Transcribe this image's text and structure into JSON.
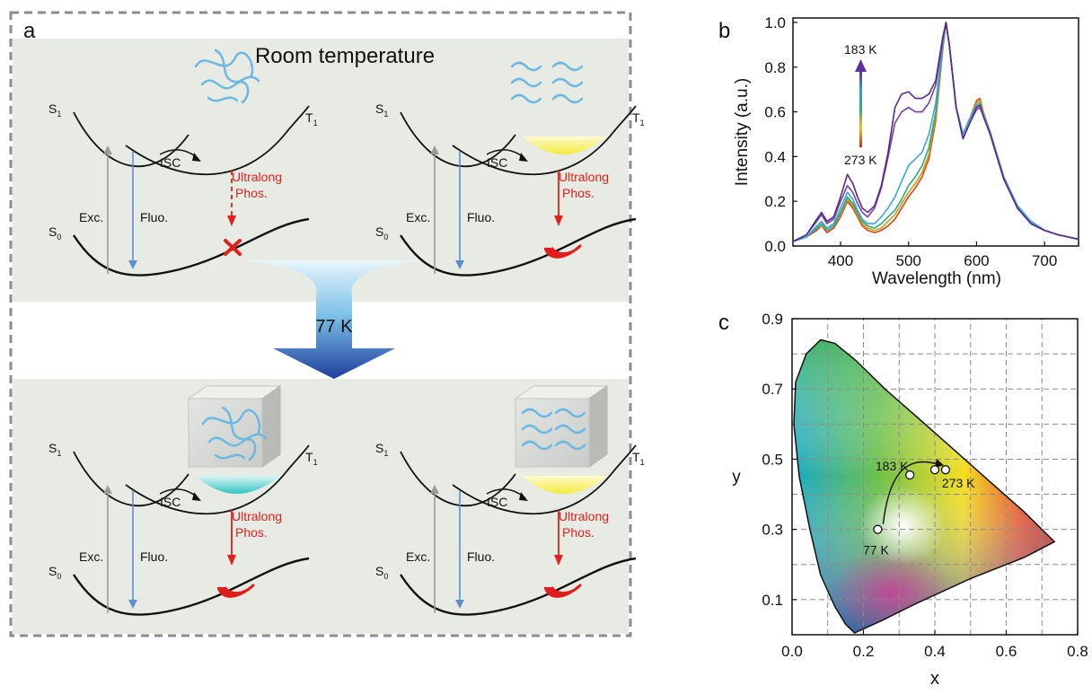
{
  "panel_a": {
    "label": "a",
    "heading": "Room temperature",
    "arrow_label": "77 K",
    "diagrams": [
      {
        "s1": "S",
        "s1_sub": "1",
        "t1": "T",
        "t1_sub": "1",
        "s0": "S",
        "s0_sub": "0",
        "exc": "Exc.",
        "fluo": "Fluo.",
        "isc": "ISC",
        "phos1": "Ultralong",
        "phos2": "Phos.",
        "well_fill": "none",
        "emission": "none",
        "env": "tangle"
      },
      {
        "s1": "S",
        "s1_sub": "1",
        "t1": "T",
        "t1_sub": "1",
        "s0": "S",
        "s0_sub": "0",
        "exc": "Exc.",
        "fluo": "Fluo.",
        "isc": "ISC",
        "phos1": "Ultralong",
        "phos2": "Phos.",
        "well_fill": "yellow",
        "emission": "glow",
        "env": "waves"
      },
      {
        "s1": "S",
        "s1_sub": "1",
        "t1": "T",
        "t1_sub": "1",
        "s0": "S",
        "s0_sub": "0",
        "exc": "Exc.",
        "fluo": "Fluo.",
        "isc": "ISC",
        "phos1": "Ultralong",
        "phos2": "Phos.",
        "well_fill": "cyan",
        "emission": "glow",
        "env": "tangle-cube"
      },
      {
        "s1": "S",
        "s1_sub": "1",
        "t1": "T",
        "t1_sub": "1",
        "s0": "S",
        "s0_sub": "0",
        "exc": "Exc.",
        "fluo": "Fluo.",
        "isc": "ISC",
        "phos1": "Ultralong",
        "phos2": "Phos.",
        "well_fill": "yellow",
        "emission": "glow",
        "env": "waves-cube"
      }
    ],
    "colors": {
      "panel_bg": "#e8ebe4",
      "exc": "#9a9a9a",
      "fluo": "#5b8fd0",
      "phos": "#e0201c",
      "isc": "#111111"
    }
  },
  "panel_b": {
    "label": "b",
    "ylabel": "Intensity (a.u.)",
    "xlabel": "Wavelength (nm)",
    "xticks": [
      "400",
      "500",
      "600",
      "700"
    ],
    "yticks": [
      "0.0",
      "0.2",
      "0.4",
      "0.6",
      "0.8",
      "1.0"
    ],
    "legend_top": "183 K",
    "legend_bottom": "273 K"
  },
  "panel_c": {
    "label": "c",
    "xlabel": "x",
    "ylabel": "y",
    "xticks": [
      "0.0",
      "0.2",
      "0.4",
      "0.6",
      "0.8"
    ],
    "yticks": [
      "0.1",
      "0.3",
      "0.5",
      "0.7",
      "0.9"
    ],
    "points": [
      {
        "x": 0.24,
        "y": 0.3,
        "label": "77 K"
      },
      {
        "x": 0.33,
        "y": 0.455,
        "label": "183 K"
      },
      {
        "x": 0.4,
        "y": 0.47,
        "label": ""
      },
      {
        "x": 0.43,
        "y": 0.47,
        "label": "273 K"
      }
    ]
  },
  "chart_data": [
    {
      "type": "line",
      "xlabel": "Wavelength (nm)",
      "ylabel": "Intensity (a.u.)",
      "xlim": [
        330,
        750
      ],
      "ylim": [
        0,
        1.02
      ],
      "x": [
        330,
        350,
        365,
        372,
        380,
        390,
        400,
        410,
        418,
        425,
        432,
        440,
        450,
        460,
        470,
        480,
        490,
        500,
        510,
        520,
        530,
        540,
        550,
        555,
        560,
        570,
        580,
        590,
        600,
        605,
        610,
        620,
        630,
        640,
        660,
        680,
        700,
        720,
        750
      ],
      "series": [
        {
          "name": "183 K",
          "color": "#5b2a86",
          "values": [
            0.02,
            0.05,
            0.12,
            0.15,
            0.11,
            0.13,
            0.22,
            0.32,
            0.28,
            0.22,
            0.17,
            0.15,
            0.18,
            0.27,
            0.42,
            0.62,
            0.68,
            0.69,
            0.66,
            0.66,
            0.68,
            0.74,
            0.93,
            1.0,
            0.9,
            0.62,
            0.48,
            0.55,
            0.62,
            0.63,
            0.58,
            0.5,
            0.4,
            0.3,
            0.17,
            0.1,
            0.07,
            0.05,
            0.03
          ]
        },
        {
          "color": "#7a3fa6",
          "values": [
            0.02,
            0.05,
            0.11,
            0.14,
            0.1,
            0.12,
            0.2,
            0.27,
            0.24,
            0.19,
            0.15,
            0.13,
            0.17,
            0.26,
            0.4,
            0.55,
            0.6,
            0.62,
            0.6,
            0.6,
            0.64,
            0.72,
            0.92,
            1.0,
            0.9,
            0.62,
            0.48,
            0.55,
            0.61,
            0.62,
            0.58,
            0.5,
            0.4,
            0.3,
            0.17,
            0.1,
            0.07,
            0.05,
            0.03
          ]
        },
        {
          "color": "#3aa6d6",
          "values": [
            0.02,
            0.04,
            0.09,
            0.11,
            0.08,
            0.1,
            0.17,
            0.24,
            0.21,
            0.16,
            0.12,
            0.1,
            0.1,
            0.13,
            0.17,
            0.22,
            0.29,
            0.36,
            0.39,
            0.42,
            0.5,
            0.64,
            0.9,
            1.0,
            0.9,
            0.62,
            0.5,
            0.57,
            0.63,
            0.64,
            0.59,
            0.51,
            0.41,
            0.31,
            0.18,
            0.11,
            0.07,
            0.05,
            0.03
          ]
        },
        {
          "color": "#2aa88e",
          "values": [
            0.02,
            0.04,
            0.08,
            0.1,
            0.07,
            0.09,
            0.15,
            0.22,
            0.19,
            0.15,
            0.11,
            0.09,
            0.08,
            0.1,
            0.13,
            0.16,
            0.21,
            0.27,
            0.31,
            0.36,
            0.44,
            0.6,
            0.89,
            1.0,
            0.9,
            0.62,
            0.5,
            0.57,
            0.63,
            0.64,
            0.59,
            0.51,
            0.41,
            0.31,
            0.18,
            0.11,
            0.07,
            0.05,
            0.03
          ]
        },
        {
          "color": "#c9a300",
          "values": [
            0.02,
            0.04,
            0.08,
            0.09,
            0.07,
            0.09,
            0.14,
            0.21,
            0.18,
            0.14,
            0.1,
            0.08,
            0.07,
            0.08,
            0.11,
            0.14,
            0.19,
            0.24,
            0.28,
            0.33,
            0.41,
            0.58,
            0.88,
            1.0,
            0.9,
            0.62,
            0.5,
            0.57,
            0.64,
            0.65,
            0.6,
            0.51,
            0.41,
            0.31,
            0.18,
            0.11,
            0.07,
            0.05,
            0.03
          ]
        },
        {
          "name": "273 K",
          "color": "#e0401c",
          "values": [
            0.02,
            0.04,
            0.07,
            0.09,
            0.06,
            0.08,
            0.13,
            0.2,
            0.17,
            0.13,
            0.09,
            0.07,
            0.06,
            0.07,
            0.09,
            0.12,
            0.17,
            0.22,
            0.26,
            0.31,
            0.39,
            0.56,
            0.87,
            1.0,
            0.9,
            0.62,
            0.5,
            0.57,
            0.65,
            0.66,
            0.6,
            0.51,
            0.41,
            0.31,
            0.18,
            0.11,
            0.07,
            0.05,
            0.03
          ]
        }
      ]
    },
    {
      "type": "scatter",
      "xlabel": "x",
      "ylabel": "y",
      "xlim": [
        0.0,
        0.8
      ],
      "ylim": [
        0.0,
        0.9
      ],
      "grid": true,
      "points": [
        {
          "x": 0.24,
          "y": 0.3,
          "label": "77 K"
        },
        {
          "x": 0.33,
          "y": 0.455,
          "label": "183 K"
        },
        {
          "x": 0.4,
          "y": 0.47
        },
        {
          "x": 0.43,
          "y": 0.47,
          "label": "273 K"
        }
      ],
      "locus": [
        [
          0.175,
          0.005
        ],
        [
          0.17,
          0.01
        ],
        [
          0.15,
          0.03
        ],
        [
          0.12,
          0.08
        ],
        [
          0.08,
          0.17
        ],
        [
          0.05,
          0.3
        ],
        [
          0.02,
          0.45
        ],
        [
          0.005,
          0.6
        ],
        [
          0.01,
          0.72
        ],
        [
          0.04,
          0.8
        ],
        [
          0.08,
          0.84
        ],
        [
          0.12,
          0.83
        ],
        [
          0.18,
          0.78
        ],
        [
          0.26,
          0.7
        ],
        [
          0.35,
          0.62
        ],
        [
          0.45,
          0.53
        ],
        [
          0.55,
          0.44
        ],
        [
          0.65,
          0.35
        ],
        [
          0.735,
          0.265
        ],
        [
          0.65,
          0.22
        ],
        [
          0.5,
          0.16
        ],
        [
          0.35,
          0.09
        ],
        [
          0.25,
          0.04
        ],
        [
          0.175,
          0.005
        ]
      ]
    }
  ]
}
